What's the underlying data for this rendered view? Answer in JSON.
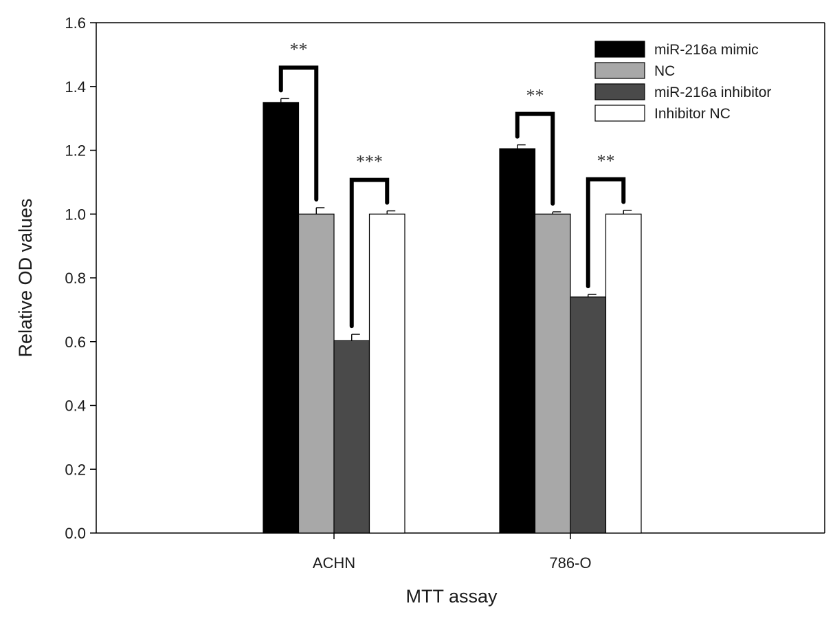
{
  "chart_data": {
    "type": "bar",
    "title": "",
    "xlabel": "MTT assay",
    "ylabel": "Relative OD values",
    "ylim": [
      0,
      1.6
    ],
    "yticks": [
      "0.0",
      "0.2",
      "0.4",
      "0.6",
      "0.8",
      "1.0",
      "1.2",
      "1.4",
      "1.6"
    ],
    "categories": [
      "ACHN",
      "786-O"
    ],
    "series": [
      {
        "name": "miR-216a mimic",
        "values": [
          1.35,
          1.205
        ],
        "errors": [
          0.012,
          0.012
        ],
        "color": "#000000"
      },
      {
        "name": "NC",
        "values": [
          1.0,
          1.0
        ],
        "errors": [
          0.02,
          0.007
        ],
        "color": "#a8a8a8"
      },
      {
        "name": "miR-216a inhibitor",
        "values": [
          0.603,
          0.74
        ],
        "errors": [
          0.02,
          0.008
        ],
        "color": "#4a4a4a"
      },
      {
        "name": "Inhibitor NC",
        "values": [
          1.0,
          1.0
        ],
        "errors": [
          0.01,
          0.012
        ],
        "color": "#ffffff"
      }
    ],
    "significance": [
      {
        "category": 0,
        "from_series": 0,
        "to_series": 1,
        "label": "**"
      },
      {
        "category": 0,
        "from_series": 2,
        "to_series": 3,
        "label": "***"
      },
      {
        "category": 1,
        "from_series": 0,
        "to_series": 1,
        "label": "**"
      },
      {
        "category": 1,
        "from_series": 2,
        "to_series": 3,
        "label": "**"
      }
    ],
    "legend_position": "top-right",
    "grid": false
  }
}
